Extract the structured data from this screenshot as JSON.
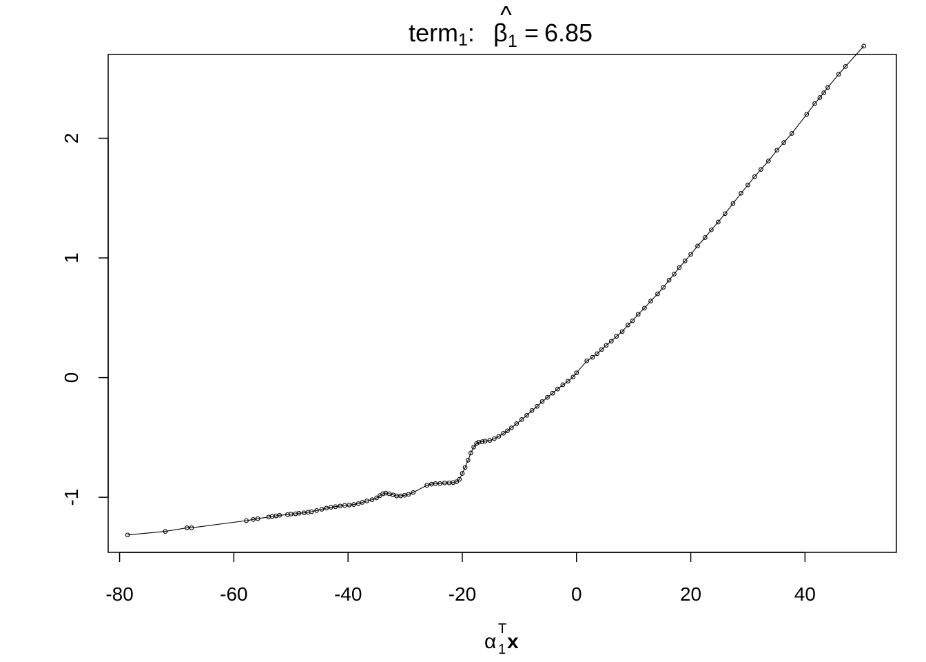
{
  "chart_data": {
    "type": "line",
    "title": {
      "prefix": "term",
      "prefix_sub": "1",
      "colon": ":",
      "beta": "β",
      "hat": "^",
      "beta_sub": "1",
      "equals": "=",
      "value": "6.85"
    },
    "xlabel": {
      "alpha": "α",
      "sub": "1",
      "sup": "T",
      "x": "x"
    },
    "ylabel": "",
    "xlim": [
      -82,
      56
    ],
    "ylim": [
      -1.46,
      2.7
    ],
    "xticks": [
      -80,
      -60,
      -40,
      -20,
      0,
      20,
      40
    ],
    "xtick_labels": [
      "-80",
      "-60",
      "-40",
      "-20",
      "0",
      "20",
      "40"
    ],
    "yticks": [
      -1,
      0,
      1,
      2
    ],
    "ytick_labels": [
      "-1",
      "0",
      "1",
      "2"
    ],
    "markers": "open-circle",
    "grid": false,
    "x": [
      -78.6,
      -72,
      -68.2,
      -67.4,
      -57.8,
      -56.6,
      -55.8,
      -53.9,
      -53.3,
      -52.6,
      -52,
      -50.6,
      -50,
      -49.2,
      -48.6,
      -47.7,
      -47,
      -46.4,
      -45.5,
      -44.6,
      -43.8,
      -43,
      -42.2,
      -41.4,
      -40.6,
      -39.8,
      -39,
      -38.2,
      -37.5,
      -36.7,
      -35.8,
      -35,
      -34.4,
      -33.9,
      -33.4,
      -32.8,
      -32.1,
      -31.5,
      -30.8,
      -30.1,
      -29.4,
      -28.6,
      -26.2,
      -25.4,
      -24.7,
      -23.9,
      -23.1,
      -22.3,
      -21.6,
      -21,
      -20.5,
      -20,
      -19.5,
      -19,
      -18.5,
      -18,
      -17.5,
      -17.1,
      -16.5,
      -16,
      -15.2,
      -14.4,
      -13.6,
      -12.8,
      -12.1,
      -11.4,
      -10.5,
      -9.6,
      -8.7,
      -7.8,
      -6.9,
      -6,
      -5.1,
      -4.2,
      -3.3,
      -2.4,
      -1.5,
      -0.6,
      0,
      1.8,
      2.8,
      3.6,
      4.4,
      5.2,
      6.1,
      7,
      8,
      9,
      9.8,
      10.8,
      11.9,
      13,
      14.2,
      15.2,
      16.2,
      17.1,
      18,
      19,
      20,
      21.2,
      22.5,
      23.6,
      24.8,
      26,
      27.4,
      28.8,
      30,
      31.2,
      32.3,
      33.6,
      35.1,
      36.3,
      37.7,
      40.3,
      41.7,
      42.6,
      43.3,
      44,
      45.9,
      47.1,
      50.3
    ],
    "y": [
      -1.315,
      -1.285,
      -1.255,
      -1.255,
      -1.195,
      -1.185,
      -1.178,
      -1.165,
      -1.16,
      -1.155,
      -1.15,
      -1.145,
      -1.14,
      -1.138,
      -1.133,
      -1.13,
      -1.125,
      -1.12,
      -1.11,
      -1.1,
      -1.09,
      -1.083,
      -1.078,
      -1.073,
      -1.068,
      -1.065,
      -1.06,
      -1.053,
      -1.042,
      -1.03,
      -1.02,
      -1.005,
      -0.985,
      -0.97,
      -0.965,
      -0.97,
      -0.98,
      -0.988,
      -0.988,
      -0.983,
      -0.975,
      -0.96,
      -0.9,
      -0.89,
      -0.885,
      -0.885,
      -0.88,
      -0.88,
      -0.877,
      -0.87,
      -0.85,
      -0.8,
      -0.75,
      -0.69,
      -0.63,
      -0.58,
      -0.55,
      -0.54,
      -0.535,
      -0.53,
      -0.525,
      -0.51,
      -0.49,
      -0.465,
      -0.445,
      -0.42,
      -0.385,
      -0.35,
      -0.315,
      -0.275,
      -0.24,
      -0.2,
      -0.165,
      -0.13,
      -0.095,
      -0.06,
      -0.03,
      0.005,
      0.04,
      0.14,
      0.17,
      0.2,
      0.235,
      0.27,
      0.305,
      0.345,
      0.385,
      0.44,
      0.475,
      0.53,
      0.58,
      0.64,
      0.7,
      0.755,
      0.815,
      0.865,
      0.92,
      0.975,
      1.03,
      1.1,
      1.17,
      1.235,
      1.3,
      1.37,
      1.455,
      1.54,
      1.61,
      1.68,
      1.74,
      1.81,
      1.9,
      1.965,
      2.04,
      2.2,
      2.29,
      2.34,
      2.38,
      2.425,
      2.535,
      2.6,
      2.77
    ]
  }
}
